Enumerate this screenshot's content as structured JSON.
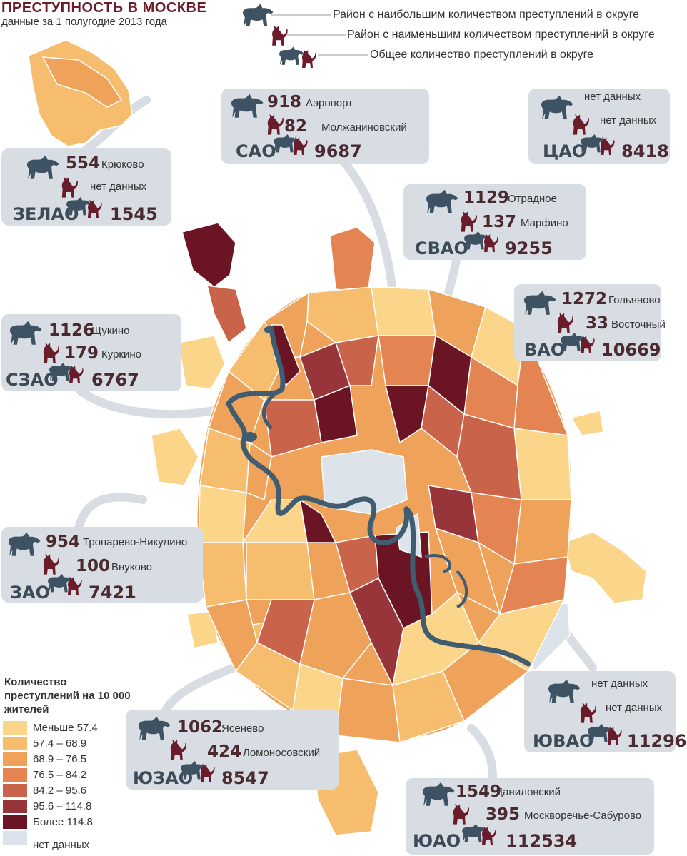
{
  "title": "ПРЕСТУПНОСТЬ В МОСКВЕ",
  "subtitle": "данные за 1 полугодие 2013 года",
  "key": [
    {
      "icon": "big-dog-icon",
      "text": "Район с наибольшим количеством преступлений в округе"
    },
    {
      "icon": "small-cat-icon",
      "text": "Район с наименьшим количеством преступлений в округе"
    },
    {
      "icon": "dog-and-cat-icon",
      "text": "Общее количество преступлений в округе"
    }
  ],
  "okrugs": [
    {
      "code": "САО",
      "max_value": "918",
      "max_name": "Аэропорт",
      "min_value": "82",
      "min_name": "Молжаниновский",
      "total": "9687"
    },
    {
      "code": "ЦАО",
      "max_value": "",
      "max_name": "нет данных",
      "min_value": "",
      "min_name": "нет данных",
      "total": "8418"
    },
    {
      "code": "ЗЕЛАО",
      "max_value": "554",
      "max_name": "Крюково",
      "min_value": "",
      "min_name": "нет данных",
      "total": "1545"
    },
    {
      "code": "СВАО",
      "max_value": "1129",
      "max_name": "Отрадное",
      "min_value": "137",
      "min_name": "Марфино",
      "total": "9255"
    },
    {
      "code": "ВАО",
      "max_value": "1272",
      "max_name": "Гольяново",
      "min_value": "33",
      "min_name": "Восточный",
      "total": "10669"
    },
    {
      "code": "СЗАО",
      "max_value": "1126",
      "max_name": "Щукино",
      "min_value": "179",
      "min_name": "Куркино",
      "total": "6767"
    },
    {
      "code": "ЗАО",
      "max_value": "954",
      "max_name": "Тропарево-Никулино",
      "min_value": "100",
      "min_name": "Внуково",
      "total": "7421"
    },
    {
      "code": "ЮВАО",
      "max_value": "",
      "max_name": "нет данных",
      "min_value": "",
      "min_name": "нет данных",
      "total": "11296"
    },
    {
      "code": "ЮЗАО",
      "max_value": "1062",
      "max_name": "Ясенево",
      "min_value": "424",
      "min_name": "Ломоносовский",
      "total": "8547"
    },
    {
      "code": "ЮАО",
      "max_value": "1549",
      "max_name": "Даниловский",
      "min_value": "395",
      "min_name": "Москворечье-Сабурово",
      "total": "112534"
    }
  ],
  "legend": {
    "title": "Количество преступлений на 10 000 жителей",
    "items": [
      {
        "label": "Меньше 57.4",
        "color": "#fbd589"
      },
      {
        "label": "57.4 – 68.9",
        "color": "#f7bd6e"
      },
      {
        "label": "68.9 – 76.5",
        "color": "#efa35a"
      },
      {
        "label": "76.5 – 84.2",
        "color": "#e38452"
      },
      {
        "label": "84.2 – 95.6",
        "color": "#c9634a"
      },
      {
        "label": "95.6 – 114.8",
        "color": "#97353a"
      },
      {
        "label": "Более 114.8",
        "color": "#6a1424"
      },
      {
        "label": "нет данных",
        "color": "#dde3ea"
      }
    ]
  },
  "colors": {
    "card": "#d7dde3",
    "river": "#3f5c70",
    "dog": "#3d5262",
    "cat": "#6b1c2a"
  }
}
